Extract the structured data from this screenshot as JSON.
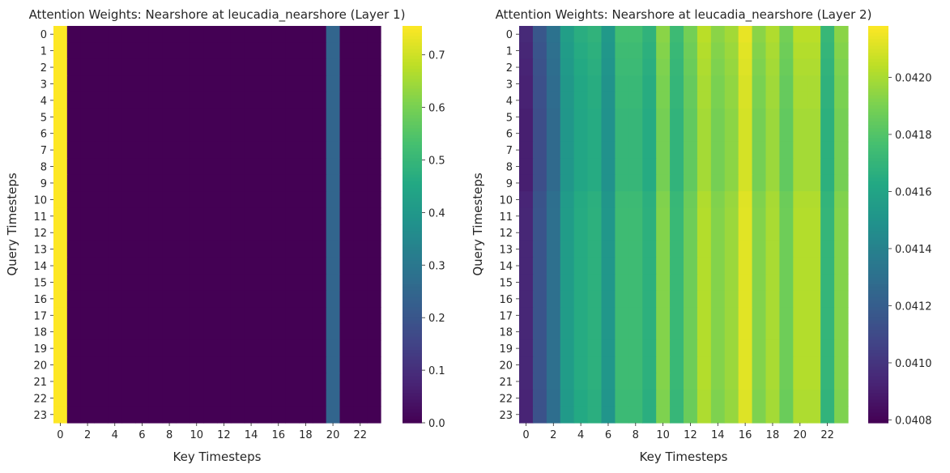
{
  "chart_data": [
    {
      "type": "heatmap",
      "title": "Attention Weights: Nearshore at leucadia_nearshore (Layer 1)",
      "xlabel": "Key Timesteps",
      "ylabel": "Query Timesteps",
      "x_tick_labels": [
        "0",
        "2",
        "4",
        "6",
        "8",
        "10",
        "12",
        "14",
        "16",
        "18",
        "20",
        "22"
      ],
      "y_tick_labels": [
        "0",
        "1",
        "2",
        "3",
        "4",
        "5",
        "6",
        "7",
        "8",
        "9",
        "10",
        "11",
        "12",
        "13",
        "14",
        "15",
        "16",
        "17",
        "18",
        "19",
        "20",
        "21",
        "22",
        "23"
      ],
      "colormap": "viridis",
      "colorbar_range": [
        0.0,
        0.755
      ],
      "colorbar_ticks": [
        "0.0",
        "0.1",
        "0.2",
        "0.3",
        "0.4",
        "0.5",
        "0.6",
        "0.7"
      ],
      "colorbar_tick_values": [
        0.0,
        0.1,
        0.2,
        0.3,
        0.4,
        0.5,
        0.6,
        0.7
      ],
      "rows": 24,
      "cols": 24,
      "column_profile": [
        0.755,
        0.0,
        0.0,
        0.0,
        0.0,
        0.0,
        0.0,
        0.0,
        0.0,
        0.0,
        0.0,
        0.0,
        0.0,
        0.0,
        0.0,
        0.0,
        0.0,
        0.0,
        0.0,
        0.0,
        0.245,
        0.0,
        0.0,
        0.0
      ],
      "row_offset": [
        0,
        0,
        0,
        0,
        0,
        0,
        0,
        0,
        0,
        0,
        0,
        0,
        0,
        0,
        0,
        0,
        0,
        0,
        0,
        0,
        0,
        0,
        0,
        0
      ]
    },
    {
      "type": "heatmap",
      "title": "Attention Weights: Nearshore at leucadia_nearshore (Layer 2)",
      "xlabel": "Key Timesteps",
      "ylabel": "Query Timesteps",
      "x_tick_labels": [
        "0",
        "2",
        "4",
        "6",
        "8",
        "10",
        "12",
        "14",
        "16",
        "18",
        "20",
        "22"
      ],
      "y_tick_labels": [
        "0",
        "1",
        "2",
        "3",
        "4",
        "5",
        "6",
        "7",
        "8",
        "9",
        "10",
        "11",
        "12",
        "13",
        "14",
        "15",
        "16",
        "17",
        "18",
        "19",
        "20",
        "21",
        "22",
        "23"
      ],
      "colormap": "viridis",
      "colorbar_range": [
        0.04079,
        0.04218
      ],
      "colorbar_ticks": [
        "0.0408",
        "0.0410",
        "0.0412",
        "0.0414",
        "0.0416",
        "0.0418",
        "0.0420"
      ],
      "colorbar_tick_values": [
        0.0408,
        0.041,
        0.0412,
        0.0414,
        0.0416,
        0.0418,
        0.042
      ],
      "rows": 24,
      "cols": 24,
      "column_profile": [
        0.04092,
        0.04113,
        0.04128,
        0.04153,
        0.04162,
        0.04165,
        0.0415,
        0.04172,
        0.04172,
        0.04165,
        0.0419,
        0.0417,
        0.04185,
        0.042,
        0.0419,
        0.04195,
        0.0421,
        0.0419,
        0.04198,
        0.04185,
        0.042,
        0.042,
        0.04168,
        0.0419
      ],
      "row_offset": [
        3.5e-05,
        2e-05,
        1e-05,
        0.0,
        0.0,
        -1e-05,
        -1e-05,
        -1e-05,
        -1e-05,
        -1e-05,
        1.5e-05,
        2e-05,
        2e-05,
        2e-05,
        2e-05,
        2e-05,
        2e-05,
        2e-05,
        2e-05,
        2e-05,
        2e-05,
        2e-05,
        1e-05,
        1e-05
      ]
    }
  ]
}
